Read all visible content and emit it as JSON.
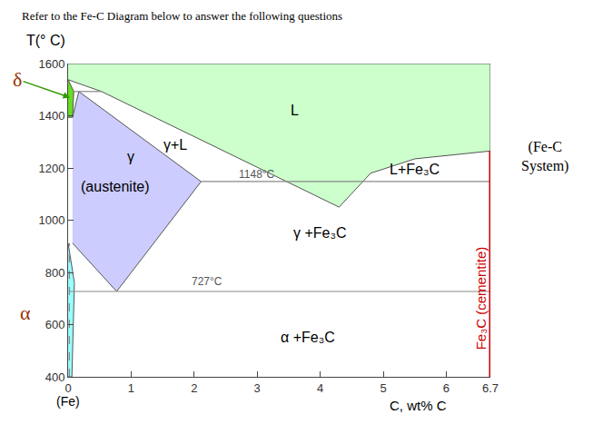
{
  "chart_data": {
    "type": "phase_diagram",
    "title": "Refer to the Fe-C Diagram below to answer the following questions",
    "y_label": "T(° C)",
    "x_label": "C, wt% C",
    "x_origin_label": "(Fe)",
    "side_label": [
      "(Fe-C",
      "System)"
    ],
    "xlim": [
      0,
      6.7
    ],
    "xticks": [
      0,
      1,
      2,
      3,
      4,
      5,
      6,
      6.7
    ],
    "ylim": [
      400,
      1600
    ],
    "yticks": [
      400,
      600,
      800,
      1000,
      1200,
      1400,
      1600
    ],
    "grid": false,
    "regions": [
      {
        "color": "#ccffcc",
        "x": [
          0,
          6.7,
          6.7,
          5.5,
          4.8,
          4.3,
          0.53,
          0
        ],
        "y": [
          1600,
          1600,
          1265,
          1235,
          1180,
          1050,
          1493,
          1538
        ]
      },
      {
        "color": "#ccccff",
        "x": [
          0.07,
          0.17,
          2.11,
          0.77,
          0.07
        ],
        "y": [
          1394,
          1493,
          1148,
          727,
          912
        ]
      },
      {
        "color": "#66dd22",
        "x": [
          0,
          0.09,
          0.07,
          0
        ],
        "y": [
          1538,
          1493,
          1394,
          1394
        ]
      },
      {
        "color": "#99ffff",
        "x": [
          0,
          0.1,
          0.06,
          0
        ],
        "y": [
          912,
          760,
          400,
          400
        ]
      }
    ],
    "boundaries": [
      {
        "color": "#888888",
        "line_style": "solid",
        "x": [
          2.11,
          6.7
        ],
        "y": [
          1148,
          1148
        ]
      },
      {
        "color": "#888888",
        "line_style": "solid",
        "x": [
          0.02,
          6.7
        ],
        "y": [
          727,
          727
        ]
      },
      {
        "color": "#888888",
        "line_style": "solid",
        "x": [
          0.09,
          0.53
        ],
        "y": [
          1493,
          1493
        ]
      },
      {
        "color": "#888888",
        "line_style": "dash",
        "x": [
          0.02,
          0.02
        ],
        "y": [
          400,
          912
        ]
      },
      {
        "color": "#cc0000",
        "line_style": "solid",
        "x": [
          6.7,
          6.7
        ],
        "y": [
          400,
          1265
        ]
      }
    ],
    "labels": [
      {
        "text": "L",
        "x": 3.6,
        "y": 1420
      },
      {
        "text": "γ",
        "x": 1.0,
        "y": 1245
      },
      {
        "text": "(austenite)",
        "x": 0.75,
        "y": 1130
      },
      {
        "text": "γ+L",
        "x": 1.7,
        "y": 1290
      },
      {
        "text": "1148°C",
        "x": 3.0,
        "y": 1175,
        "color": "#555555"
      },
      {
        "text": "L+Fe₃C",
        "x": 5.5,
        "y": 1195
      },
      {
        "text": "γ +Fe₃C",
        "x": 4.0,
        "y": 950
      },
      {
        "text": "727°C",
        "x": 2.2,
        "y": 765,
        "color": "#555555"
      },
      {
        "text": "α +Fe₃C",
        "x": 3.8,
        "y": 550
      }
    ],
    "vertical_label": {
      "text": "Fe₃C (cementite)",
      "x": 6.55,
      "y": 700,
      "color": "#cc0000"
    },
    "axis_labels": [
      {
        "text": "δ",
        "y": 1530,
        "points_to": [
          0.03,
          1470
        ],
        "color": "#993300"
      },
      {
        "text": "α",
        "y": 645,
        "color": "#993300"
      }
    ]
  }
}
